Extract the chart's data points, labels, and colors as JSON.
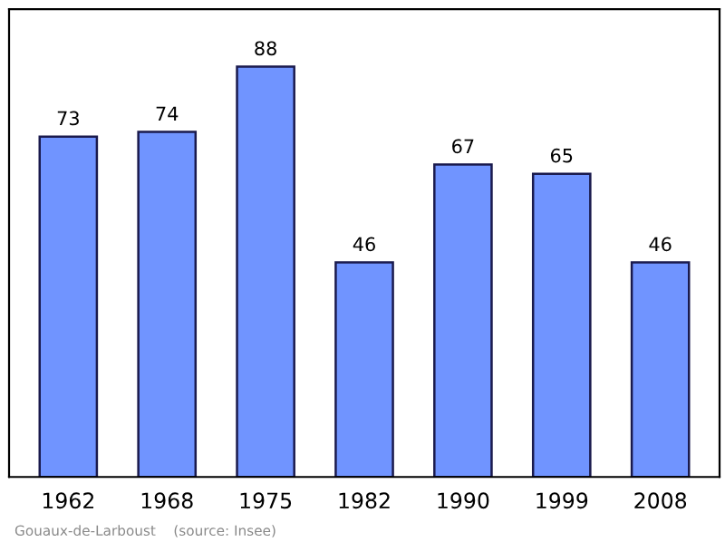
{
  "chart_data": {
    "type": "bar",
    "categories": [
      "1962",
      "1968",
      "1975",
      "1982",
      "1990",
      "1999",
      "2008"
    ],
    "values": [
      73,
      74,
      88,
      46,
      67,
      65,
      46
    ],
    "color": "#7094ff",
    "data_labels": true,
    "grid": false,
    "legend": false,
    "annotations": [
      "Gouaux-de-Larboust    (source: Insee)"
    ]
  }
}
